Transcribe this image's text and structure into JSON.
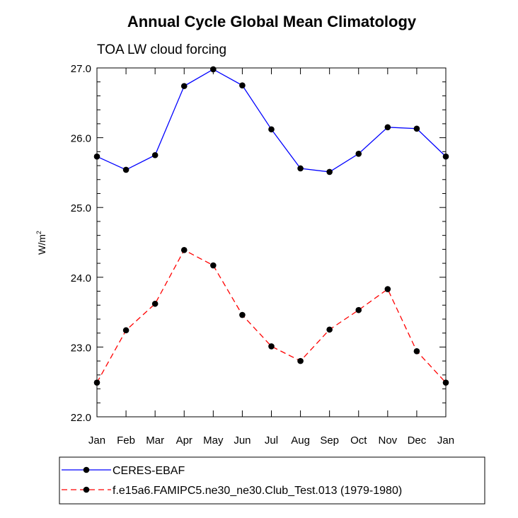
{
  "chart_data": {
    "type": "line",
    "title": "Annual Cycle Global Mean Climatology",
    "subtitle": "TOA LW cloud forcing",
    "ylabel": "W/m",
    "ylabel_sup": "2",
    "xlabel": "",
    "categories": [
      "Jan",
      "Feb",
      "Mar",
      "Apr",
      "May",
      "Jun",
      "Jul",
      "Aug",
      "Sep",
      "Oct",
      "Nov",
      "Dec",
      "Jan"
    ],
    "ylim": [
      22.0,
      27.0
    ],
    "yticks": [
      "22.0",
      "23.0",
      "24.0",
      "25.0",
      "26.0",
      "27.0"
    ],
    "grid": false,
    "legend_position": "bottom",
    "series": [
      {
        "name": "CERES-EBAF",
        "color": "#0000ff",
        "line_style": "solid",
        "marker": "filled-circle",
        "values": [
          25.73,
          25.54,
          25.75,
          26.74,
          26.98,
          26.75,
          26.12,
          25.56,
          25.51,
          25.77,
          26.15,
          26.13,
          25.73
        ]
      },
      {
        "name": "f.e15a6.FAMIPC5.ne30_ne30.Club_Test.013 (1979-1980)",
        "color": "#ff0000",
        "line_style": "dashed",
        "marker": "filled-circle",
        "values": [
          22.49,
          23.24,
          23.62,
          24.39,
          24.17,
          23.46,
          23.01,
          22.8,
          23.25,
          23.53,
          23.83,
          22.94,
          22.49
        ]
      }
    ]
  }
}
